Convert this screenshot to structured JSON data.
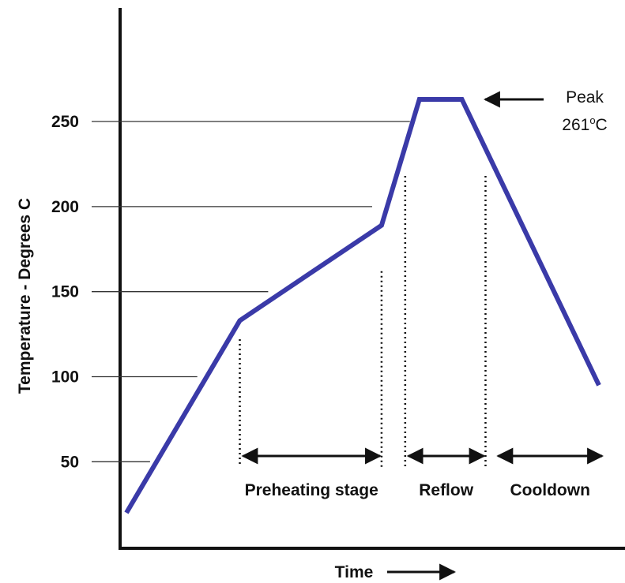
{
  "chart_data": {
    "type": "line",
    "title": "",
    "xlabel": "Time",
    "ylabel": "Temperature - Degrees C",
    "ylim": [
      20,
      300
    ],
    "xlim": [
      0,
      100
    ],
    "y_ticks": [
      "50",
      "100",
      "150",
      "200",
      "250"
    ],
    "y_tick_values": [
      50,
      100,
      150,
      200,
      250
    ],
    "grid": "partial horizontal guide lines",
    "colors": {
      "series": "#3a3aa8",
      "axis": "#111111",
      "guide": "#333333"
    },
    "series": [
      {
        "x": [
          0,
          24,
          54,
          62,
          71,
          100
        ],
        "y": [
          20,
          133,
          189,
          263,
          263,
          95
        ]
      }
    ],
    "guide_line_ends_x": [
      5,
      15,
      30,
      52,
      60
    ],
    "stage_boundaries": [
      {
        "x": 24,
        "y_top": 122
      },
      {
        "x": 54,
        "y_top": 162
      },
      {
        "x": 59,
        "y_top": 218
      },
      {
        "x": 76,
        "y_top": 218
      }
    ],
    "stages": [
      {
        "label": "Preheating stage",
        "x_start": 24,
        "x_end": 54
      },
      {
        "label": "Reflow",
        "x_start": 59,
        "x_end": 76
      },
      {
        "label": "Cooldown",
        "x_start": 78,
        "x_end": 101
      }
    ],
    "annotation": {
      "line1": "Peak",
      "line2_value": "261",
      "line2_superscript": "o",
      "line2_unit": "C"
    }
  }
}
